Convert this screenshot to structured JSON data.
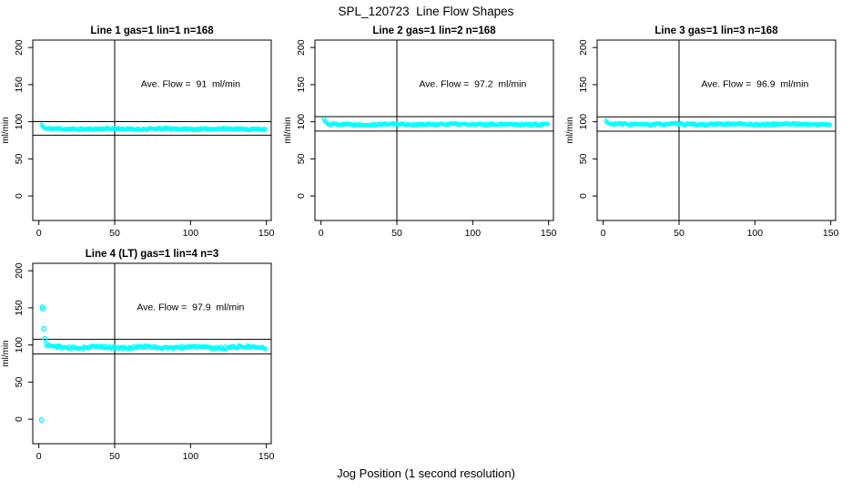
{
  "title": "SPL_120723  Line Flow Shapes",
  "xlabel": "Jog Position (1 second resolution)",
  "marker_color": "#00FFFF",
  "axis_color": "#000000",
  "chart_data": [
    {
      "type": "scatter",
      "title": "Line 1 gas=1 lin=1 n=168",
      "annotation": "Ave. Flow =  91  ml/min",
      "annotation_pos": {
        "x": 100,
        "y": 147
      },
      "ave_flow_ml_min": 91,
      "ref_lines": [
        100.1,
        81.9
      ],
      "vline_x": 50,
      "ylabel": "ml/min",
      "x_ticks": [
        0,
        50,
        100,
        150
      ],
      "y_ticks": [
        0,
        50,
        100,
        150,
        200
      ],
      "xlim": [
        -4,
        153.2
      ],
      "ylim": [
        -33,
        210
      ],
      "grid": {
        "row": 0,
        "col": 0
      },
      "lead_points": [
        [
          1.8,
          96
        ],
        [
          2.5,
          94
        ],
        [
          3.2,
          92.5
        ],
        [
          4,
          91.5
        ]
      ],
      "outlier_points": [],
      "band": {
        "x_start": 4.5,
        "x_end": 150,
        "step": 0.7,
        "mean": 90.3,
        "noise": 1.3,
        "wave_amp": 0.4,
        "wave_len": 6,
        "seed": 11
      }
    },
    {
      "type": "scatter",
      "title": "Line 2 gas=1 lin=2 n=168",
      "annotation": "Ave. Flow =  97.2  ml/min",
      "annotation_pos": {
        "x": 100,
        "y": 147
      },
      "ave_flow_ml_min": 97.2,
      "ref_lines": [
        106.9,
        87.5
      ],
      "vline_x": 50,
      "ylabel": "ml/min",
      "x_ticks": [
        0,
        50,
        100,
        150
      ],
      "y_ticks": [
        0,
        50,
        100,
        150,
        200
      ],
      "xlim": [
        -4,
        153.2
      ],
      "ylim": [
        -33,
        210
      ],
      "grid": {
        "row": 0,
        "col": 1
      },
      "lead_points": [
        [
          1.8,
          104
        ],
        [
          2.5,
          101
        ],
        [
          3.2,
          99.5
        ],
        [
          4,
          98.5
        ]
      ],
      "outlier_points": [],
      "band": {
        "x_start": 4.5,
        "x_end": 150,
        "step": 0.7,
        "mean": 96.5,
        "noise": 1.3,
        "wave_amp": 0.4,
        "wave_len": 6,
        "seed": 22
      }
    },
    {
      "type": "scatter",
      "title": "Line 3 gas=1 lin=3 n=168",
      "annotation": "Ave. Flow =  96.9  ml/min",
      "annotation_pos": {
        "x": 100,
        "y": 147
      },
      "ave_flow_ml_min": 96.9,
      "ref_lines": [
        106.6,
        87.2
      ],
      "vline_x": 50,
      "ylabel": "ml/min",
      "x_ticks": [
        0,
        50,
        100,
        150
      ],
      "y_ticks": [
        0,
        50,
        100,
        150,
        200
      ],
      "xlim": [
        -4,
        153.2
      ],
      "ylim": [
        -33,
        210
      ],
      "grid": {
        "row": 0,
        "col": 2
      },
      "lead_points": [
        [
          1.8,
          101.5
        ],
        [
          2.5,
          99.5
        ],
        [
          3.2,
          98.3
        ]
      ],
      "outlier_points": [],
      "band": {
        "x_start": 4.5,
        "x_end": 150,
        "step": 0.7,
        "mean": 96.6,
        "noise": 1.3,
        "wave_amp": 0.4,
        "wave_len": 6,
        "seed": 33
      }
    },
    {
      "type": "scatter",
      "title": "Line 4 (LT) gas=1 lin=4 n=3",
      "annotation": "Ave. Flow =  97.9  ml/min",
      "annotation_pos": {
        "x": 100,
        "y": 147
      },
      "ave_flow_ml_min": 97.9,
      "ref_lines": [
        107.7,
        88.1
      ],
      "vline_x": 50,
      "ylabel": "ml/min",
      "x_ticks": [
        0,
        50,
        100,
        150
      ],
      "y_ticks": [
        0,
        50,
        100,
        150,
        200
      ],
      "xlim": [
        -4,
        153.2
      ],
      "ylim": [
        -33,
        210
      ],
      "grid": {
        "row": 1,
        "col": 0
      },
      "lead_points": [],
      "outlier_points": [
        [
          1.8,
          -1
        ],
        [
          2.2,
          151
        ],
        [
          2.6,
          148.5
        ],
        [
          3.2,
          122
        ],
        [
          4,
          108.5
        ]
      ],
      "band": {
        "x_start": 4.5,
        "x_end": 150,
        "step": 0.7,
        "mean": 96.8,
        "noise": 1.9,
        "wave_amp": 0.9,
        "wave_len": 5,
        "seed": 44,
        "decay": {
          "amp": 3.0,
          "len": 3.5
        }
      }
    }
  ]
}
